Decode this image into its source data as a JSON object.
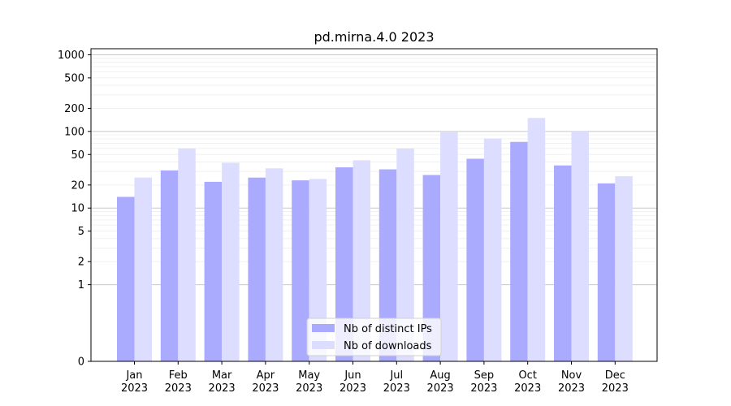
{
  "chart_data": {
    "type": "bar",
    "title": "pd.mirna.4.0 2023",
    "xlabel": "",
    "ylabel": "",
    "y_scale": "symlog",
    "ylim": [
      0,
      1200
    ],
    "yticks": [
      0,
      1,
      2,
      5,
      10,
      20,
      50,
      100,
      200,
      500,
      1000
    ],
    "ytick_labels": [
      "0",
      "1",
      "2",
      "5",
      "10",
      "20",
      "50",
      "100",
      "200",
      "500",
      "1000"
    ],
    "categories": [
      [
        "Jan",
        "2023"
      ],
      [
        "Feb",
        "2023"
      ],
      [
        "Mar",
        "2023"
      ],
      [
        "Apr",
        "2023"
      ],
      [
        "May",
        "2023"
      ],
      [
        "Jun",
        "2023"
      ],
      [
        "Jul",
        "2023"
      ],
      [
        "Aug",
        "2023"
      ],
      [
        "Sep",
        "2023"
      ],
      [
        "Oct",
        "2023"
      ],
      [
        "Nov",
        "2023"
      ],
      [
        "Dec",
        "2023"
      ]
    ],
    "series": [
      {
        "name": "Nb of distinct IPs",
        "color": "#aaaaff",
        "values": [
          14,
          31,
          22,
          25,
          23,
          34,
          32,
          27,
          44,
          73,
          36,
          21
        ]
      },
      {
        "name": "Nb of downloads",
        "color": "#ddddff",
        "values": [
          25,
          60,
          39,
          33,
          24,
          42,
          60,
          98,
          81,
          150,
          100,
          26
        ]
      }
    ],
    "grid": true,
    "legend_position": "lower-center"
  }
}
